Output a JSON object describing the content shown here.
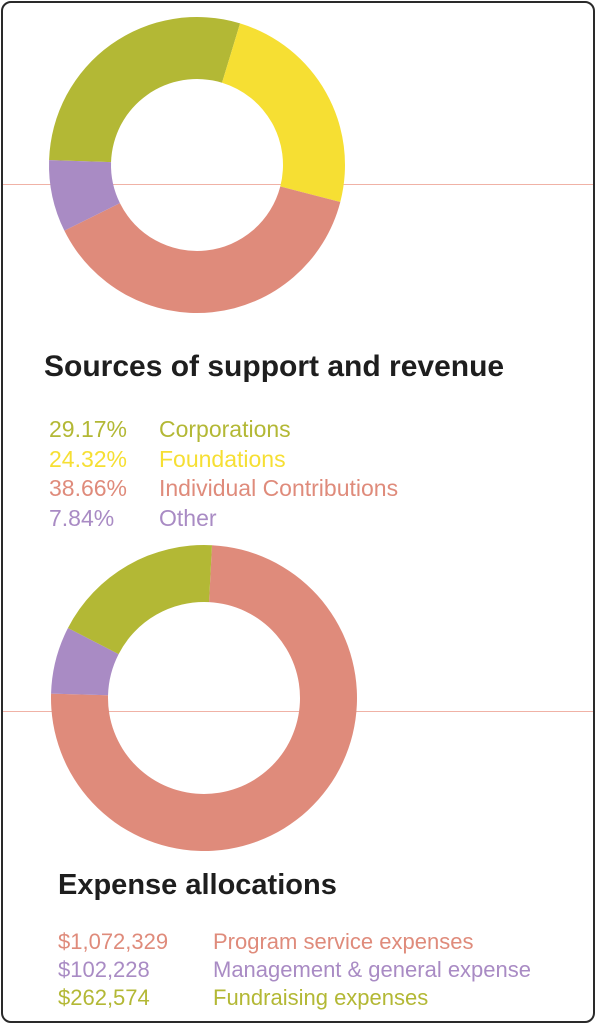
{
  "chart_data": [
    {
      "type": "pie",
      "variant": "donut",
      "title": "Sources of support and revenue",
      "unit": "percent",
      "slices": [
        {
          "label": "Corporations",
          "value": 29.17,
          "display": "29.17%",
          "color": "#b3b835"
        },
        {
          "label": "Foundations",
          "value": 24.32,
          "display": "24.32%",
          "color": "#f6df33"
        },
        {
          "label": "Individual Contributions",
          "value": 38.66,
          "display": "38.66%",
          "color": "#df8b7b"
        },
        {
          "label": "Other",
          "value": 7.84,
          "display": "7.84%",
          "color": "#a98bc4"
        }
      ],
      "legend_position": "bottom"
    },
    {
      "type": "pie",
      "variant": "donut",
      "title": "Expense allocations",
      "unit": "USD",
      "slices": [
        {
          "label": "Program service expenses",
          "value": 1072329,
          "display": "$1,072,329",
          "color": "#df8b7b"
        },
        {
          "label": "Management & general expense",
          "value": 102228,
          "display": "$102,228",
          "color": "#a98bc4"
        },
        {
          "label": "Fundraising expenses",
          "value": 262574,
          "display": "$262,574",
          "color": "#b3b835"
        }
      ],
      "legend_position": "bottom"
    }
  ],
  "theme": {
    "border": "#2a2a2a",
    "divider_line": "#f0b2a6",
    "heading_text": "#1e1e1e"
  }
}
